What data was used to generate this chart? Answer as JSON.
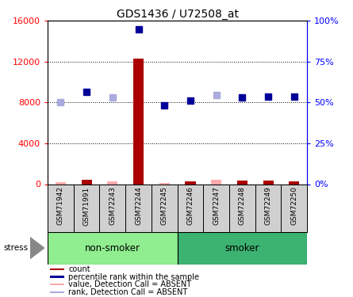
{
  "title": "GDS1436 / U72508_at",
  "samples": [
    "GSM71942",
    "GSM71991",
    "GSM72243",
    "GSM72244",
    "GSM72245",
    "GSM72246",
    "GSM72247",
    "GSM72248",
    "GSM72249",
    "GSM72250"
  ],
  "groups": [
    {
      "name": "non-smoker",
      "color": "#90EE90",
      "span": [
        0,
        5
      ]
    },
    {
      "name": "smoker",
      "color": "#3CB371",
      "span": [
        5,
        10
      ]
    }
  ],
  "ylim_left": [
    0,
    16000
  ],
  "ylim_right": [
    0,
    100
  ],
  "yticks_left": [
    0,
    4000,
    8000,
    12000,
    16000
  ],
  "yticks_right": [
    0,
    25,
    50,
    75,
    100
  ],
  "ytick_labels_left": [
    "0",
    "4000",
    "8000",
    "12000",
    "16000"
  ],
  "ytick_labels_right": [
    "0%",
    "25%",
    "50%",
    "75%",
    "100%"
  ],
  "count_values": [
    200,
    400,
    250,
    12300,
    150,
    250,
    450,
    350,
    350,
    300
  ],
  "count_absent": [
    1,
    0,
    1,
    0,
    1,
    0,
    1,
    0,
    0,
    0
  ],
  "rank_values": [
    8000,
    9000,
    8500,
    15200,
    7700,
    8200,
    8700,
    8500,
    8600,
    8600
  ],
  "rank_absent": [
    1,
    0,
    1,
    0,
    0,
    0,
    1,
    0,
    0,
    0
  ],
  "count_bar_color": "#AA0000",
  "count_absent_color": "#FFAAAA",
  "rank_present_color": "#000099",
  "rank_absent_color": "#AAAADD",
  "stress_label": "stress",
  "legend_items": [
    {
      "color": "#AA0000",
      "label": "count"
    },
    {
      "color": "#000099",
      "label": "percentile rank within the sample"
    },
    {
      "color": "#FFAAAA",
      "label": "value, Detection Call = ABSENT"
    },
    {
      "color": "#AAAADD",
      "label": "rank, Detection Call = ABSENT"
    }
  ]
}
